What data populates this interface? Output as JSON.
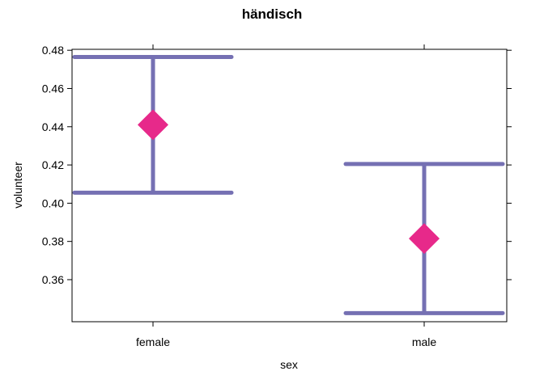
{
  "chart_data": {
    "type": "scatter",
    "title": "händisch",
    "xlabel": "sex",
    "ylabel": "volunteer",
    "categories": [
      "female",
      "male"
    ],
    "points": [
      {
        "x": "female",
        "y": 0.441,
        "lower": 0.4055,
        "upper": 0.4765
      },
      {
        "x": "male",
        "y": 0.3815,
        "lower": 0.3425,
        "upper": 0.4205
      }
    ],
    "yticks": [
      "0.36",
      "0.38",
      "0.40",
      "0.42",
      "0.44",
      "0.46",
      "0.48"
    ],
    "ylim": [
      0.338,
      0.4805
    ],
    "grid": false,
    "colors": {
      "point": "#E7298A",
      "errorbar": "#7570B3",
      "axis": "#000000"
    }
  }
}
